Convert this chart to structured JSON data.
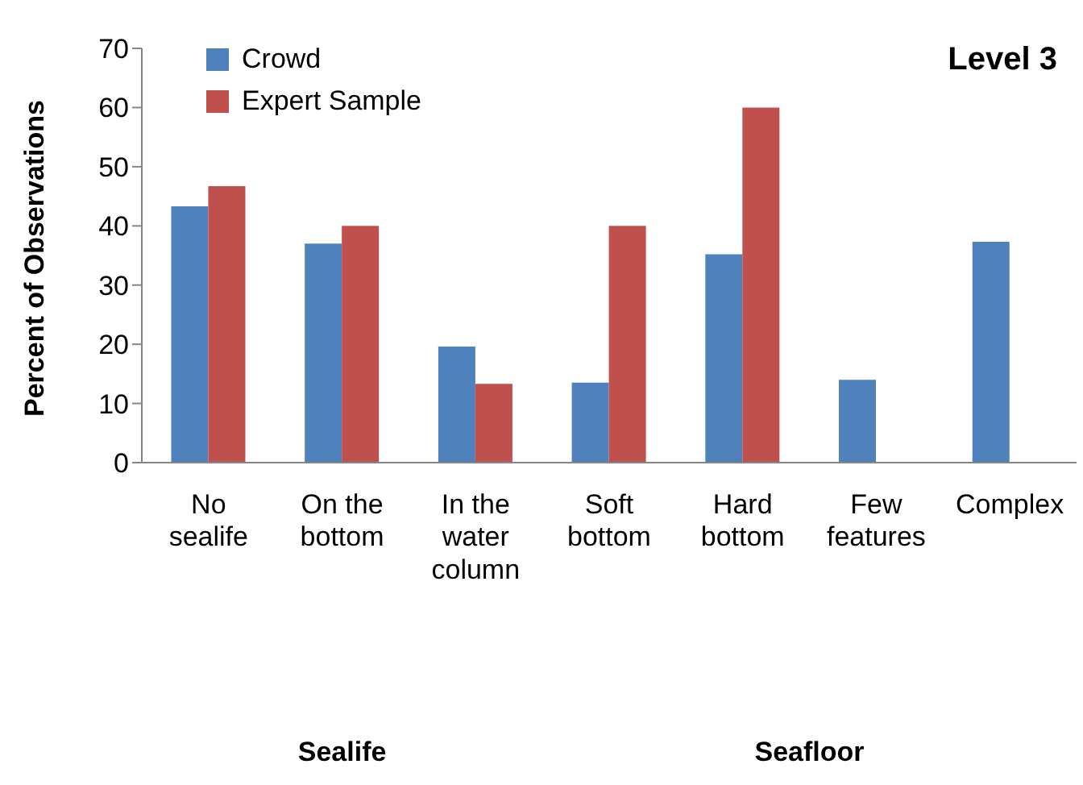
{
  "chart_data": {
    "type": "bar",
    "ylabel": "Percent of Observations",
    "categories": [
      "No sealife",
      "On the bottom",
      "In the water column",
      "Soft bottom",
      "Hard bottom",
      "Few features",
      "Complex"
    ],
    "series": [
      {
        "name": "Crowd",
        "color": "#4f81bd",
        "values": [
          43.3,
          37,
          19.6,
          13.5,
          35.2,
          14,
          37.3
        ]
      },
      {
        "name": "Expert Sample",
        "color": "#c0504d",
        "values": [
          46.7,
          40,
          13.3,
          40,
          60,
          null,
          null
        ]
      }
    ],
    "ylim": [
      0,
      70
    ],
    "yticks": [
      0,
      10,
      20,
      30,
      40,
      50,
      60,
      70
    ],
    "grid": false,
    "legend": "top left",
    "annotations": [
      "Level 3",
      "Sealife",
      "Seafloor"
    ]
  }
}
